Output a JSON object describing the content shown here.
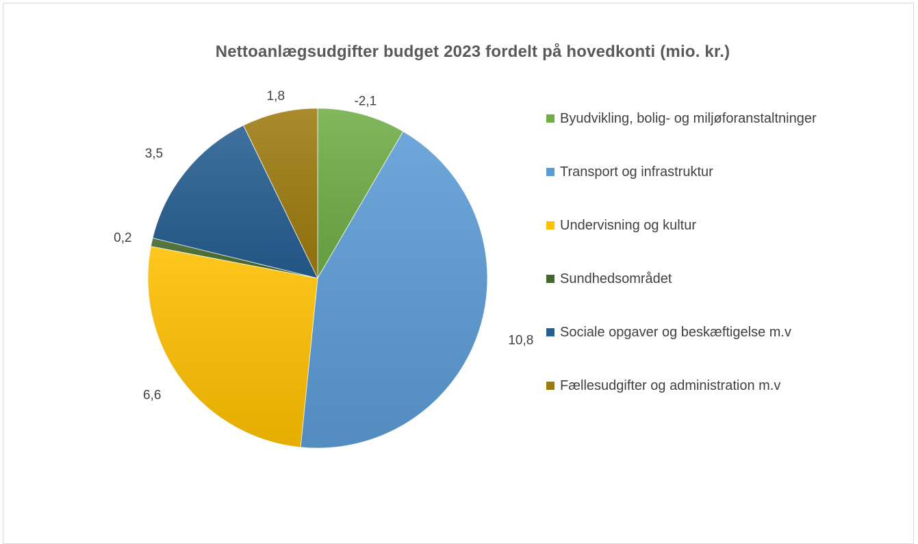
{
  "chart_data": {
    "type": "pie",
    "title": "Nettoanlægsudgifter budget 2023 fordelt på hovedkonti (mio. kr.)",
    "legend_position": "right",
    "slices": [
      {
        "name": "Byudvikling, bolig- og miljøforanstaltninger",
        "value": -2.1,
        "label": "-2,1",
        "color": "#70ad47",
        "icon": "green-square"
      },
      {
        "name": "Transport og infrastruktur",
        "value": 10.8,
        "label": "10,8",
        "color": "#5b9bd5",
        "icon": "blue-square"
      },
      {
        "name": "Undervisning og kultur",
        "value": 6.6,
        "label": "6,6",
        "color": "#ffc000",
        "icon": "yellow-square"
      },
      {
        "name": "Sundhedsområdet",
        "value": 0.2,
        "label": "0,2",
        "color": "#43682b",
        "icon": "dark-green-square"
      },
      {
        "name": "Sociale opgaver og beskæftigelse m.v",
        "value": 3.5,
        "label": "3,5",
        "color": "#255e91",
        "icon": "dark-blue-square"
      },
      {
        "name": "Fællesudgifter og administration m.v",
        "value": 1.8,
        "label": "1,8",
        "color": "#9e7b10",
        "icon": "brown-square"
      }
    ]
  }
}
